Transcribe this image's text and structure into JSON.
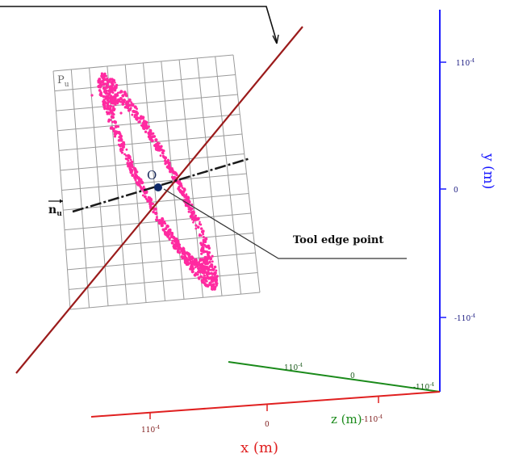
{
  "plane_label": "P",
  "plane_label_sub": "u",
  "origin_label": "O",
  "normal_label": "n",
  "normal_label_sub": "u",
  "tool_edge_label": "Tool edge point",
  "y_axis": {
    "title": "y  (m)",
    "ticks": [
      "110",
      "0",
      "-110"
    ],
    "tick_exp": "-4",
    "color": "#1a1aff"
  },
  "z_axis": {
    "title": "z (m)",
    "ticks": [
      "110",
      "0",
      "-110"
    ],
    "tick_exp": "-4",
    "color": "#1a8a1a"
  },
  "x_axis": {
    "title": "x  (m)",
    "ticks": [
      "110",
      "0",
      "-110"
    ],
    "tick_exp": "-4",
    "color": "#e02020"
  },
  "colors": {
    "points": "#ff2aa0",
    "tool_line": "#9b1b1b",
    "normal_line": "#1a1a1a",
    "grid": "#9a9a9a",
    "origin": "#102a6a"
  }
}
